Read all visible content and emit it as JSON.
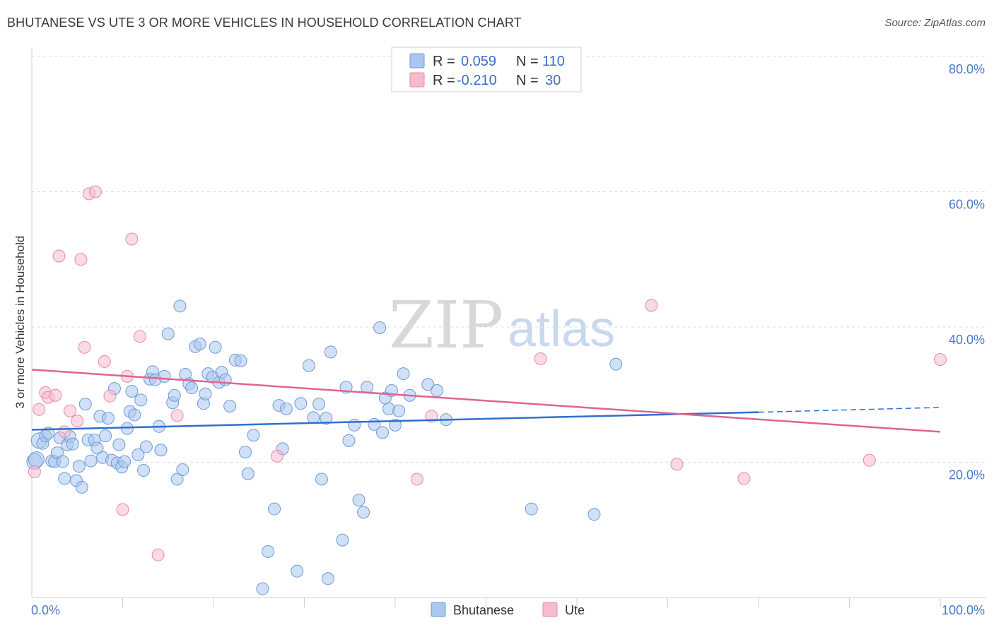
{
  "title": "BHUTANESE VS UTE 3 OR MORE VEHICLES IN HOUSEHOLD CORRELATION CHART",
  "source": "Source: ZipAtlas.com",
  "watermark": {
    "zip": "ZIP",
    "atlas": "atlas"
  },
  "legend": {
    "rows": [
      {
        "r_label": "R =",
        "r_value": "0.059",
        "n_label": "N =",
        "n_value": "110"
      },
      {
        "r_label": "R =",
        "r_value": "-0.210",
        "n_label": "N =",
        "n_value": "30"
      }
    ]
  },
  "bottom_legend": [
    "Bhutanese",
    "Ute"
  ],
  "colors": {
    "blue_fill": "#a9c7ef",
    "blue_stroke": "#6f9ad8",
    "blue_line": "#2f6fd0",
    "pink_fill": "#f5bcd0",
    "pink_stroke": "#e88aa8",
    "pink_line": "#e0648f",
    "grid": "#dcdcdc",
    "tick_text": "#4a78c8"
  },
  "chart_data": {
    "type": "scatter",
    "title": "BHUTANESE VS UTE 3 OR MORE VEHICLES IN HOUSEHOLD CORRELATION CHART",
    "xlabel": "",
    "ylabel": "3 or more Vehicles in Household",
    "xlim": [
      0,
      100
    ],
    "ylim": [
      0,
      80
    ],
    "x_tick_labels": [
      "0.0%",
      "100.0%"
    ],
    "y_ticks": [
      20,
      40,
      60,
      80
    ],
    "y_tick_labels": [
      "20.0%",
      "40.0%",
      "60.0%",
      "80.0%"
    ],
    "grid": true,
    "legend_position": "top-center",
    "series": [
      {
        "name": "Bhutanese",
        "color": "#a9c7ef",
        "trend": {
          "x": [
            0,
            80
          ],
          "y": [
            24.8,
            27.4
          ],
          "dashed_to": [
            100,
            28.1
          ]
        },
        "points": [
          [
            0.3,
            20.1
          ],
          [
            0.5,
            20.4
          ],
          [
            0.8,
            23.2
          ],
          [
            1.2,
            22.8
          ],
          [
            1.5,
            23.9
          ],
          [
            1.8,
            24.3
          ],
          [
            2.2,
            20.2
          ],
          [
            2.5,
            20.1
          ],
          [
            2.8,
            21.4
          ],
          [
            3.1,
            23.6
          ],
          [
            3.4,
            20.1
          ],
          [
            3.6,
            17.6
          ],
          [
            3.9,
            22.6
          ],
          [
            4.2,
            23.8
          ],
          [
            4.5,
            22.7
          ],
          [
            4.9,
            17.3
          ],
          [
            5.2,
            19.4
          ],
          [
            5.5,
            16.3
          ],
          [
            5.9,
            28.6
          ],
          [
            6.2,
            23.3
          ],
          [
            6.5,
            20.2
          ],
          [
            6.9,
            23.3
          ],
          [
            7.2,
            22.1
          ],
          [
            7.5,
            26.8
          ],
          [
            7.8,
            20.7
          ],
          [
            8.1,
            23.9
          ],
          [
            8.4,
            26.5
          ],
          [
            8.8,
            20.3
          ],
          [
            9.1,
            30.9
          ],
          [
            9.4,
            19.9
          ],
          [
            9.6,
            22.6
          ],
          [
            9.9,
            19.3
          ],
          [
            10.2,
            20.1
          ],
          [
            10.5,
            25.0
          ],
          [
            10.8,
            27.5
          ],
          [
            11.0,
            30.5
          ],
          [
            11.3,
            27.0
          ],
          [
            11.7,
            21.1
          ],
          [
            12.0,
            29.2
          ],
          [
            12.3,
            18.8
          ],
          [
            12.6,
            22.3
          ],
          [
            13.0,
            32.3
          ],
          [
            13.3,
            33.4
          ],
          [
            13.6,
            32.2
          ],
          [
            14.0,
            25.3
          ],
          [
            14.2,
            21.8
          ],
          [
            14.6,
            32.7
          ],
          [
            15.0,
            39.0
          ],
          [
            15.5,
            28.8
          ],
          [
            15.7,
            29.9
          ],
          [
            16.0,
            17.5
          ],
          [
            16.3,
            43.1
          ],
          [
            16.6,
            18.9
          ],
          [
            16.9,
            33.0
          ],
          [
            17.3,
            31.6
          ],
          [
            17.6,
            31.0
          ],
          [
            18.0,
            37.1
          ],
          [
            18.5,
            37.5
          ],
          [
            18.9,
            28.7
          ],
          [
            19.1,
            30.1
          ],
          [
            19.4,
            33.1
          ],
          [
            19.9,
            32.6
          ],
          [
            20.2,
            37.0
          ],
          [
            20.6,
            31.8
          ],
          [
            20.9,
            33.3
          ],
          [
            21.3,
            32.2
          ],
          [
            21.8,
            28.3
          ],
          [
            22.4,
            35.1
          ],
          [
            23.0,
            35.0
          ],
          [
            23.5,
            21.5
          ],
          [
            23.8,
            18.3
          ],
          [
            24.4,
            24.0
          ],
          [
            25.4,
            1.3
          ],
          [
            26.0,
            6.8
          ],
          [
            26.7,
            13.1
          ],
          [
            27.2,
            28.4
          ],
          [
            27.6,
            22.0
          ],
          [
            28.0,
            27.9
          ],
          [
            29.2,
            3.9
          ],
          [
            29.6,
            28.7
          ],
          [
            30.5,
            34.3
          ],
          [
            31.0,
            26.6
          ],
          [
            31.6,
            28.6
          ],
          [
            31.9,
            17.5
          ],
          [
            32.4,
            26.5
          ],
          [
            32.6,
            2.8
          ],
          [
            32.9,
            36.3
          ],
          [
            34.2,
            8.5
          ],
          [
            34.6,
            31.1
          ],
          [
            34.9,
            23.2
          ],
          [
            35.5,
            25.5
          ],
          [
            36.0,
            14.4
          ],
          [
            36.5,
            12.6
          ],
          [
            36.9,
            31.1
          ],
          [
            37.7,
            25.6
          ],
          [
            38.3,
            39.9
          ],
          [
            38.6,
            24.4
          ],
          [
            38.9,
            29.5
          ],
          [
            39.3,
            27.9
          ],
          [
            39.6,
            30.6
          ],
          [
            40.0,
            25.5
          ],
          [
            40.4,
            27.6
          ],
          [
            40.9,
            33.1
          ],
          [
            41.6,
            29.9
          ],
          [
            43.6,
            31.5
          ],
          [
            44.6,
            30.6
          ],
          [
            45.6,
            26.3
          ],
          [
            55.0,
            13.1
          ],
          [
            61.9,
            12.3
          ],
          [
            64.3,
            34.5
          ]
        ]
      },
      {
        "name": "Ute",
        "color": "#f5bcd0",
        "trend": {
          "x": [
            0,
            100
          ],
          "y": [
            33.7,
            24.5
          ]
        },
        "points": [
          [
            0.3,
            18.6
          ],
          [
            0.8,
            27.8
          ],
          [
            1.5,
            30.3
          ],
          [
            1.8,
            29.6
          ],
          [
            2.6,
            29.9
          ],
          [
            3.0,
            50.5
          ],
          [
            3.6,
            24.5
          ],
          [
            4.2,
            27.6
          ],
          [
            5.0,
            26.1
          ],
          [
            5.4,
            50.0
          ],
          [
            5.8,
            37.0
          ],
          [
            6.3,
            59.7
          ],
          [
            7.0,
            60.0
          ],
          [
            8.0,
            34.9
          ],
          [
            8.6,
            29.8
          ],
          [
            10.0,
            13.0
          ],
          [
            10.5,
            32.7
          ],
          [
            11.0,
            53.0
          ],
          [
            11.9,
            38.6
          ],
          [
            13.9,
            6.3
          ],
          [
            16.0,
            26.9
          ],
          [
            27.0,
            20.9
          ],
          [
            42.4,
            17.5
          ],
          [
            44.0,
            26.8
          ],
          [
            56.0,
            35.3
          ],
          [
            68.2,
            43.2
          ],
          [
            71.0,
            19.7
          ],
          [
            78.4,
            17.6
          ],
          [
            92.2,
            20.3
          ],
          [
            100.0,
            35.2
          ]
        ]
      }
    ]
  }
}
